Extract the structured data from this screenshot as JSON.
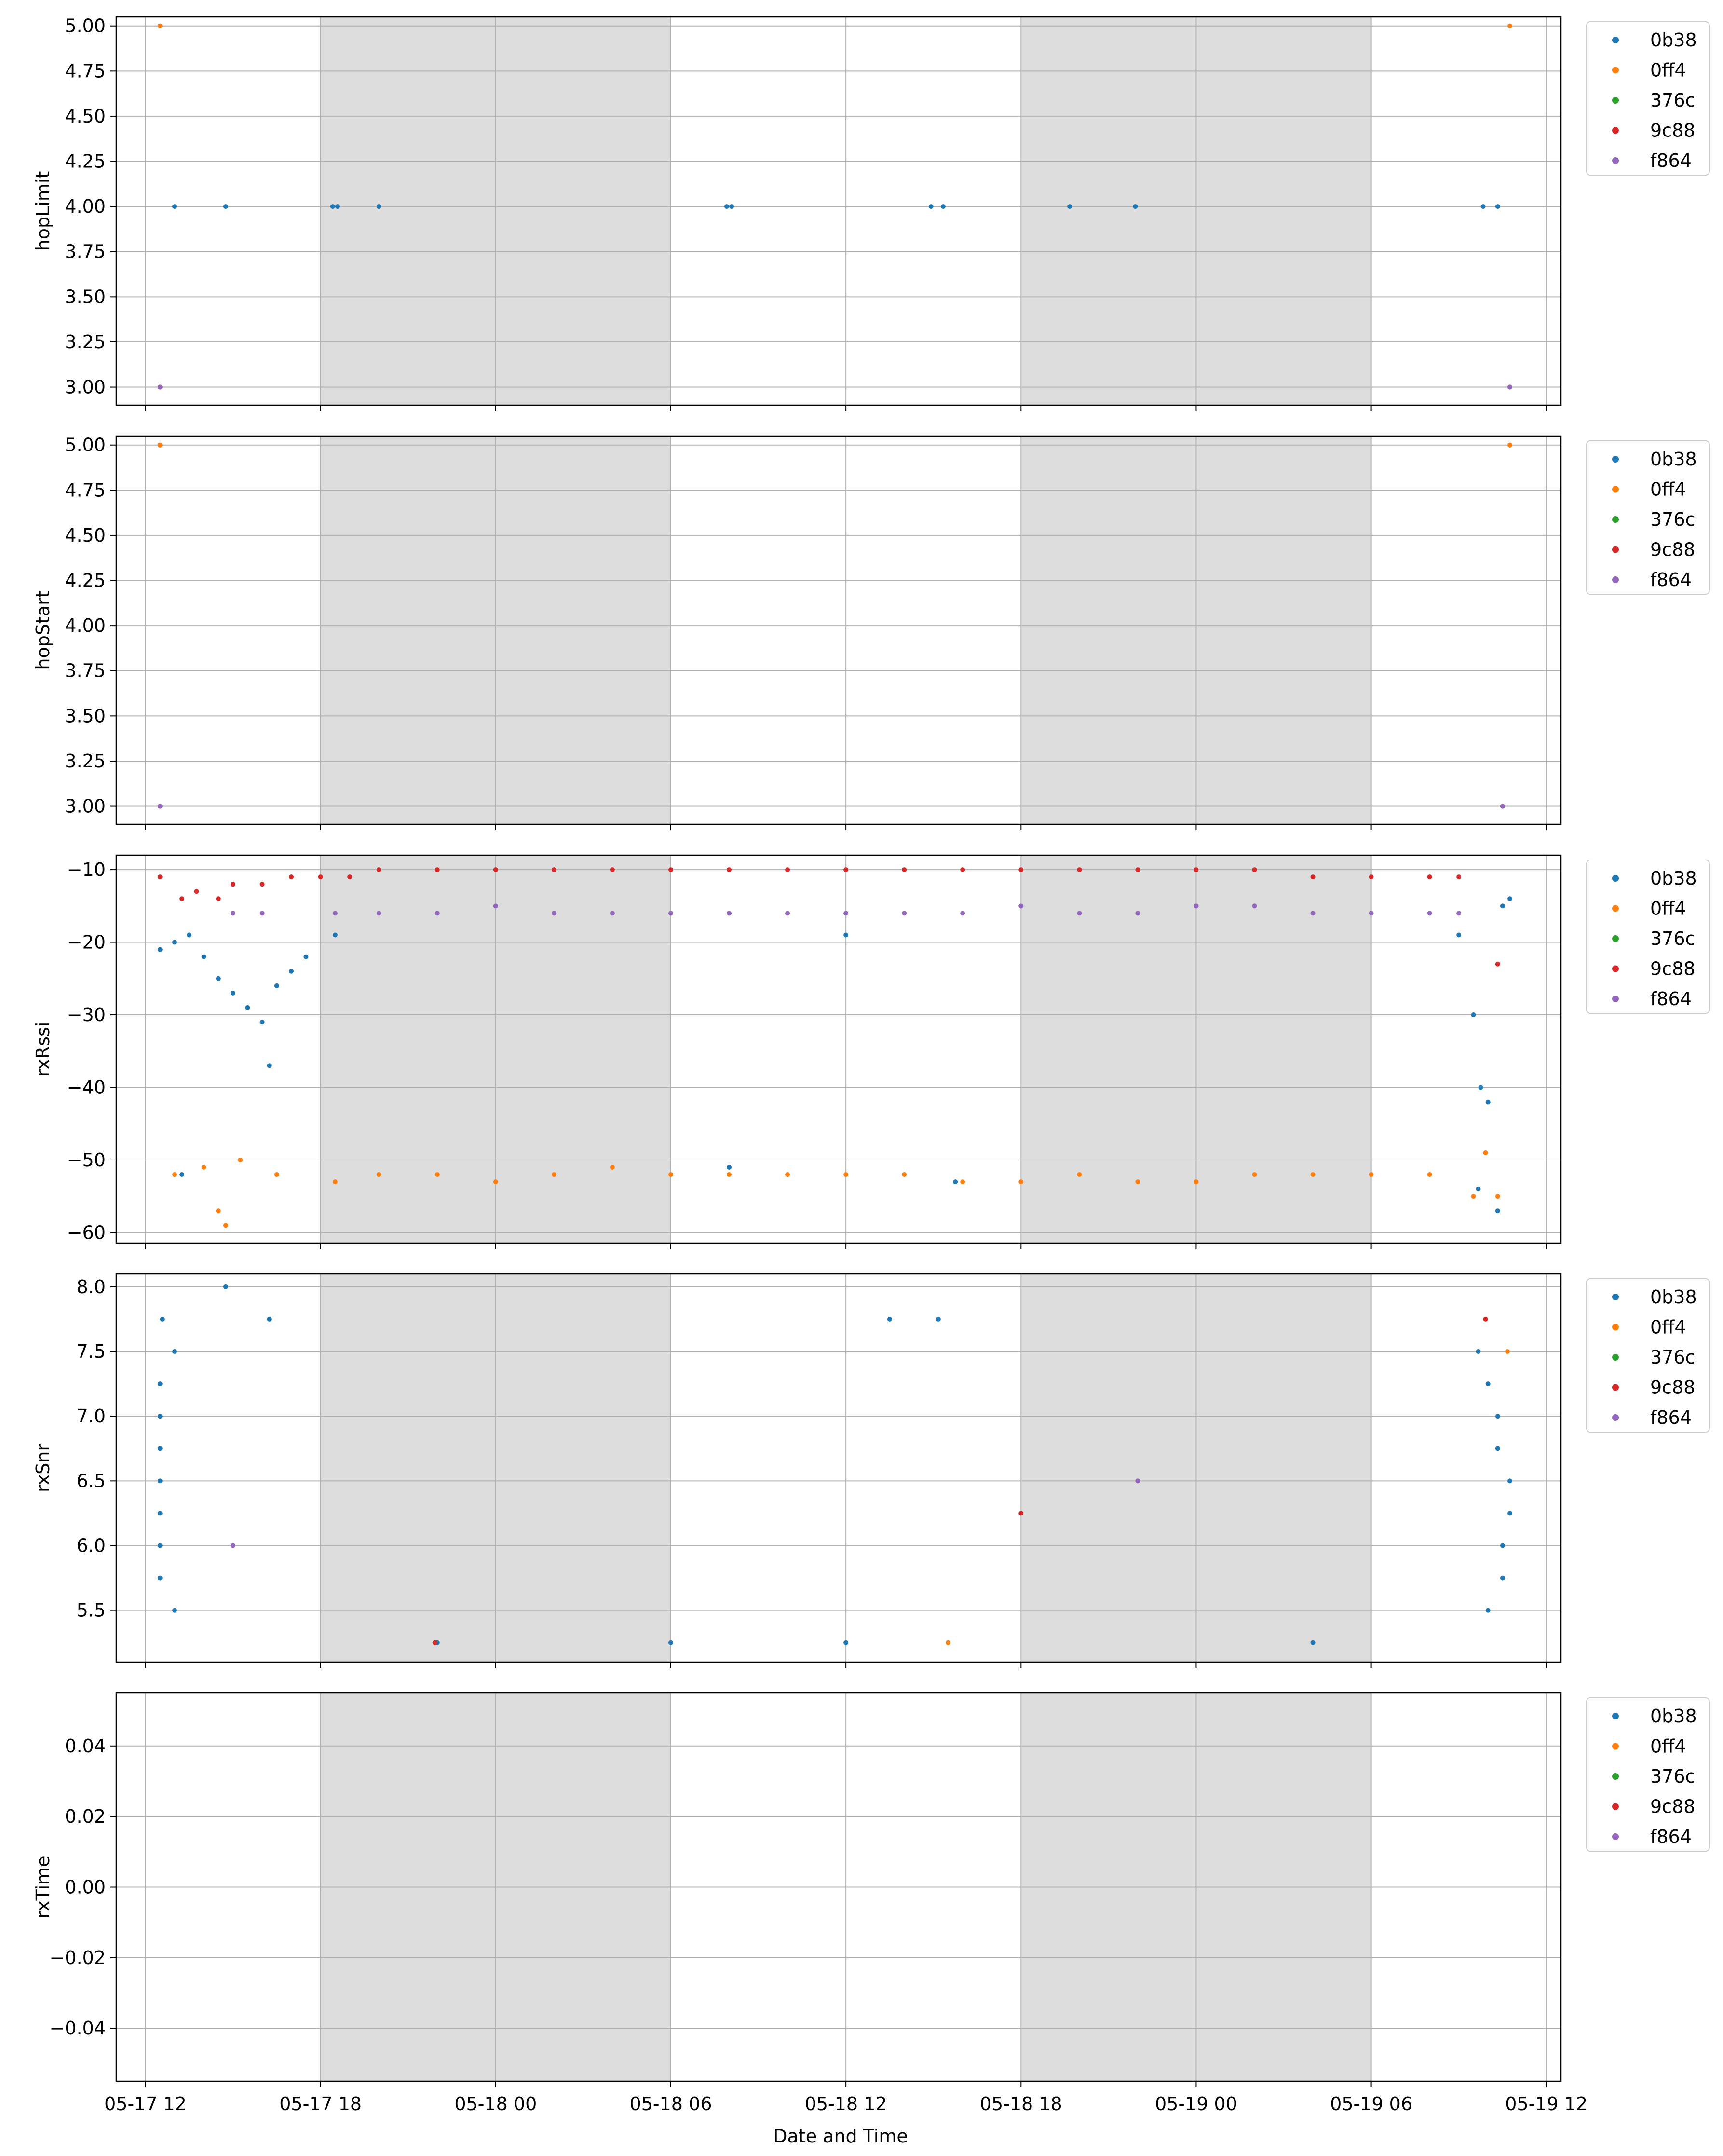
{
  "figure": {
    "xlabel": "Date and Time"
  },
  "legend_entries": [
    "0b38",
    "0ff4",
    "376c",
    "9c88",
    "f864"
  ],
  "series_colors": [
    "#1f77b4",
    "#ff7f0e",
    "#2ca02c",
    "#d62728",
    "#9467bd"
  ],
  "shading": {
    "color": "#dddddd",
    "periods": [
      [
        "05-17 18:00",
        "05-18 06:00"
      ],
      [
        "05-18 18:00",
        "05-19 06:00"
      ]
    ]
  },
  "x_axis": {
    "range": [
      "05-17 11:00",
      "05-19 12:30"
    ],
    "ticks": [
      "05-17 12",
      "05-17 18",
      "05-18 00",
      "05-18 06",
      "05-18 12",
      "05-18 18",
      "05-19 00",
      "05-19 06",
      "05-19 12"
    ]
  },
  "chart_data": [
    {
      "type": "scatter",
      "ylabel": "hopLimit",
      "ylim": [
        2.9,
        5.05
      ],
      "yticks": [
        "3.00",
        "3.25",
        "3.50",
        "3.75",
        "4.00",
        "4.25",
        "4.50",
        "4.75",
        "5.00"
      ],
      "grid": true,
      "legend": "outside-right",
      "series": [
        {
          "name": "0b38",
          "points": [
            [
              "05-17 12:30",
              5.0
            ],
            [
              "05-19 10:45",
              5.0
            ],
            [
              "05-17 12:30",
              3.0
            ],
            [
              "05-19 10:45",
              3.0
            ],
            [
              "05-17 13:00",
              4.0
            ],
            [
              "05-17 14:45",
              4.0
            ],
            [
              "05-17 18:25",
              4.0
            ],
            [
              "05-17 18:35",
              4.0
            ],
            [
              "05-17 20:00",
              4.0
            ],
            [
              "05-18 07:55",
              4.0
            ],
            [
              "05-18 08:05",
              4.0
            ],
            [
              "05-18 14:55",
              4.0
            ],
            [
              "05-18 15:20",
              4.0
            ],
            [
              "05-18 19:40",
              4.0
            ],
            [
              "05-18 21:55",
              4.0
            ],
            [
              "05-19 09:50",
              4.0
            ],
            [
              "05-19 10:20",
              4.0
            ]
          ]
        },
        {
          "name": "0ff4",
          "points": [
            [
              "05-17 12:30",
              5.0
            ],
            [
              "05-19 10:45",
              5.0
            ]
          ]
        },
        {
          "name": "376c",
          "points": [
            [
              "05-17 12:30",
              3.0
            ],
            [
              "05-19 10:45",
              3.0
            ]
          ]
        },
        {
          "name": "9c88",
          "points": [
            [
              "05-17 12:30",
              3.0
            ],
            [
              "05-19 10:45",
              3.0
            ]
          ]
        },
        {
          "name": "f864",
          "points": [
            [
              "05-17 12:30",
              3.0
            ],
            [
              "05-19 10:45",
              3.0
            ]
          ]
        }
      ]
    },
    {
      "type": "scatter",
      "ylabel": "hopStart",
      "ylim": [
        2.9,
        5.05
      ],
      "yticks": [
        "3.00",
        "3.25",
        "3.50",
        "3.75",
        "4.00",
        "4.25",
        "4.50",
        "4.75",
        "5.00"
      ],
      "grid": true,
      "legend": "outside-right",
      "series": [
        {
          "name": "0b38",
          "points": [
            [
              "05-17 12:30",
              5.0
            ],
            [
              "05-19 10:45",
              5.0
            ]
          ]
        },
        {
          "name": "0ff4",
          "points": [
            [
              "05-17 12:30",
              5.0
            ],
            [
              "05-19 10:45",
              5.0
            ]
          ]
        },
        {
          "name": "376c",
          "points": [
            [
              "05-17 12:30",
              3.0
            ],
            [
              "05-19 10:30",
              3.0
            ]
          ]
        },
        {
          "name": "9c88",
          "points": [
            [
              "05-17 12:30",
              3.0
            ],
            [
              "05-19 10:30",
              3.0
            ]
          ]
        },
        {
          "name": "f864",
          "points": [
            [
              "05-17 12:30",
              3.0
            ],
            [
              "05-19 10:30",
              3.0
            ]
          ]
        }
      ]
    },
    {
      "type": "scatter",
      "ylabel": "rxRssi",
      "ylim": [
        -61.5,
        -8
      ],
      "yticks": [
        "−10",
        "−20",
        "−30",
        "−40",
        "−50",
        "−60"
      ],
      "grid": true,
      "legend": "outside-right",
      "series": [
        {
          "name": "0b38",
          "points": [
            [
              "05-17 12:30",
              -21
            ],
            [
              "05-17 13:00",
              -20
            ],
            [
              "05-17 13:30",
              -19
            ],
            [
              "05-17 14:00",
              -22
            ],
            [
              "05-17 14:30",
              -25
            ],
            [
              "05-17 15:00",
              -27
            ],
            [
              "05-17 15:30",
              -29
            ],
            [
              "05-17 16:00",
              -31
            ],
            [
              "05-17 16:30",
              -26
            ],
            [
              "05-17 17:00",
              -24
            ],
            [
              "05-17 17:30",
              -22
            ],
            [
              "05-17 18:30",
              -19
            ],
            [
              "05-18 12:00",
              -19
            ],
            [
              "05-19 09:00",
              -19
            ],
            [
              "05-19 09:30",
              -30
            ],
            [
              "05-19 09:45",
              -40
            ],
            [
              "05-19 10:00",
              -42
            ],
            [
              "05-19 10:30",
              -15
            ],
            [
              "05-19 10:45",
              -14
            ],
            [
              "05-17 16:15",
              -37
            ],
            [
              "05-17 13:15",
              -52
            ],
            [
              "05-18 08:00",
              -51
            ],
            [
              "05-18 15:45",
              -53
            ],
            [
              "05-19 09:40",
              -54
            ],
            [
              "05-19 10:20",
              -57
            ]
          ]
        },
        {
          "name": "0ff4",
          "points": [
            [
              "05-17 13:00",
              -52
            ],
            [
              "05-17 14:00",
              -51
            ],
            [
              "05-17 14:30",
              -57
            ],
            [
              "05-17 14:45",
              -59
            ],
            [
              "05-17 15:15",
              -50
            ],
            [
              "05-17 16:30",
              -52
            ],
            [
              "05-17 18:30",
              -53
            ],
            [
              "05-17 20:00",
              -52
            ],
            [
              "05-17 22:00",
              -52
            ],
            [
              "05-18 00:00",
              -53
            ],
            [
              "05-18 02:00",
              -52
            ],
            [
              "05-18 04:00",
              -51
            ],
            [
              "05-18 06:00",
              -52
            ],
            [
              "05-18 08:00",
              -52
            ],
            [
              "05-18 10:00",
              -52
            ],
            [
              "05-18 12:00",
              -52
            ],
            [
              "05-18 14:00",
              -52
            ],
            [
              "05-18 16:00",
              -53
            ],
            [
              "05-18 18:00",
              -53
            ],
            [
              "05-18 20:00",
              -52
            ],
            [
              "05-18 22:00",
              -53
            ],
            [
              "05-19 00:00",
              -53
            ],
            [
              "05-19 02:00",
              -52
            ],
            [
              "05-19 04:00",
              -52
            ],
            [
              "05-19 06:00",
              -52
            ],
            [
              "05-19 08:00",
              -52
            ],
            [
              "05-19 09:30",
              -55
            ],
            [
              "05-19 09:55",
              -49
            ],
            [
              "05-19 10:20",
              -55
            ]
          ]
        },
        {
          "name": "9c88",
          "points": [
            [
              "05-17 12:30",
              -11
            ],
            [
              "05-17 13:15",
              -14
            ],
            [
              "05-17 13:45",
              -13
            ],
            [
              "05-17 14:30",
              -14
            ],
            [
              "05-17 15:00",
              -12
            ],
            [
              "05-17 16:00",
              -12
            ],
            [
              "05-17 17:00",
              -11
            ],
            [
              "05-17 18:00",
              -11
            ],
            [
              "05-17 19:00",
              -11
            ],
            [
              "05-17 20:00",
              -10
            ],
            [
              "05-17 22:00",
              -10
            ],
            [
              "05-18 00:00",
              -10
            ],
            [
              "05-18 02:00",
              -10
            ],
            [
              "05-18 04:00",
              -10
            ],
            [
              "05-18 06:00",
              -10
            ],
            [
              "05-18 08:00",
              -10
            ],
            [
              "05-18 10:00",
              -10
            ],
            [
              "05-18 12:00",
              -10
            ],
            [
              "05-18 14:00",
              -10
            ],
            [
              "05-18 16:00",
              -10
            ],
            [
              "05-18 18:00",
              -10
            ],
            [
              "05-18 20:00",
              -10
            ],
            [
              "05-18 22:00",
              -10
            ],
            [
              "05-19 00:00",
              -10
            ],
            [
              "05-19 02:00",
              -10
            ],
            [
              "05-19 04:00",
              -11
            ],
            [
              "05-19 06:00",
              -11
            ],
            [
              "05-19 08:00",
              -11
            ],
            [
              "05-19 09:00",
              -11
            ],
            [
              "05-19 10:20",
              -23
            ]
          ]
        },
        {
          "name": "f864",
          "points": [
            [
              "05-17 15:00",
              -16
            ],
            [
              "05-17 16:00",
              -16
            ],
            [
              "05-17 18:30",
              -16
            ],
            [
              "05-17 20:00",
              -16
            ],
            [
              "05-17 22:00",
              -16
            ],
            [
              "05-18 00:00",
              -15
            ],
            [
              "05-18 02:00",
              -16
            ],
            [
              "05-18 04:00",
              -16
            ],
            [
              "05-18 06:00",
              -16
            ],
            [
              "05-18 08:00",
              -16
            ],
            [
              "05-18 10:00",
              -16
            ],
            [
              "05-18 12:00",
              -16
            ],
            [
              "05-18 14:00",
              -16
            ],
            [
              "05-18 16:00",
              -16
            ],
            [
              "05-18 18:00",
              -15
            ],
            [
              "05-18 20:00",
              -16
            ],
            [
              "05-18 22:00",
              -16
            ],
            [
              "05-19 00:00",
              -15
            ],
            [
              "05-19 02:00",
              -15
            ],
            [
              "05-19 04:00",
              -16
            ],
            [
              "05-19 06:00",
              -16
            ],
            [
              "05-19 08:00",
              -16
            ],
            [
              "05-19 09:00",
              -16
            ]
          ]
        }
      ]
    },
    {
      "type": "scatter",
      "ylabel": "rxSnr",
      "ylim": [
        5.1,
        8.1
      ],
      "yticks": [
        "5.5",
        "6.0",
        "6.5",
        "7.0",
        "7.5",
        "8.0"
      ],
      "grid": true,
      "legend": "outside-right",
      "series": [
        {
          "name": "0b38",
          "points": [
            [
              "05-17 12:30",
              6.25
            ],
            [
              "05-19 10:45",
              6.25
            ],
            [
              "05-17 12:30",
              5.75
            ],
            [
              "05-19 10:30",
              5.75
            ],
            [
              "05-17 12:30",
              6.0
            ],
            [
              "05-19 10:30",
              6.0
            ],
            [
              "05-17 12:30",
              6.5
            ],
            [
              "05-19 10:45",
              6.5
            ],
            [
              "05-17 12:30",
              6.75
            ],
            [
              "05-19 10:20",
              6.75
            ],
            [
              "05-17 12:30",
              7.0
            ],
            [
              "05-19 10:20",
              7.0
            ],
            [
              "05-17 13:00",
              5.5
            ],
            [
              "05-19 10:00",
              5.5
            ],
            [
              "05-17 12:35",
              7.75
            ],
            [
              "05-17 14:45",
              8.0
            ],
            [
              "05-17 16:15",
              7.75
            ],
            [
              "05-18 13:30",
              7.75
            ],
            [
              "05-18 15:10",
              7.75
            ],
            [
              "05-17 12:30",
              7.25
            ],
            [
              "05-19 10:00",
              7.25
            ],
            [
              "05-17 13:00",
              7.5
            ],
            [
              "05-19 09:40",
              7.5
            ],
            [
              "05-17 22:00",
              5.25
            ],
            [
              "05-18 06:00",
              5.25
            ],
            [
              "05-18 12:00",
              5.25
            ],
            [
              "05-19 04:00",
              5.25
            ]
          ]
        },
        {
          "name": "0ff4",
          "points": [
            [
              "05-18 15:30",
              5.25
            ],
            [
              "05-19 10:40",
              7.5
            ]
          ]
        },
        {
          "name": "9c88",
          "points": [
            [
              "05-17 21:55",
              5.25
            ],
            [
              "05-19 09:55",
              7.75
            ],
            [
              "05-18 18:00",
              6.25
            ]
          ]
        },
        {
          "name": "f864",
          "points": [
            [
              "05-17 15:00",
              6.0
            ],
            [
              "05-18 22:00",
              6.5
            ]
          ]
        }
      ]
    },
    {
      "type": "scatter",
      "ylabel": "rxTime",
      "ylim": [
        -0.055,
        0.055
      ],
      "yticks": [
        "0.04",
        "0.02",
        "0.00",
        "−0.02",
        "−0.04"
      ],
      "grid": true,
      "legend": "outside-right",
      "series": [
        {
          "name": "0b38",
          "points": []
        },
        {
          "name": "0ff4",
          "points": []
        },
        {
          "name": "376c",
          "points": []
        },
        {
          "name": "9c88",
          "points": []
        },
        {
          "name": "f864",
          "points": []
        }
      ]
    }
  ]
}
